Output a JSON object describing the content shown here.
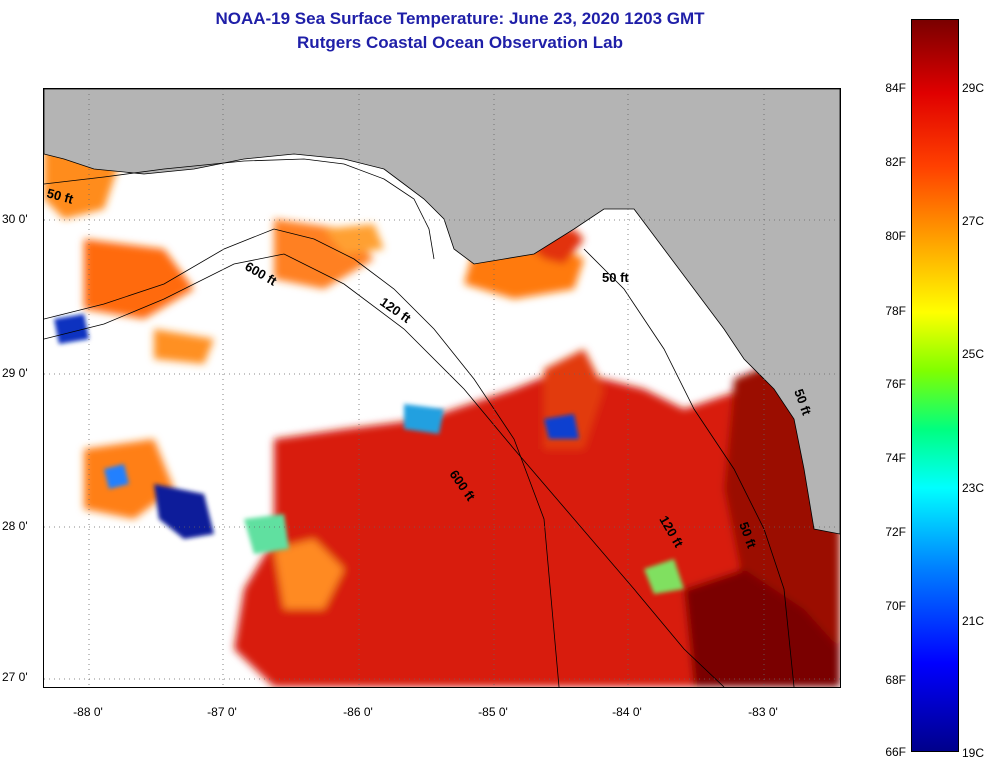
{
  "title": {
    "line1": "NOAA-19 Sea Surface Temperature:  June 23, 2020 1203 GMT",
    "line2": "Rutgers Coastal Ocean Observation Lab"
  },
  "map": {
    "lon_labels": [
      "-88 0'",
      "-87 0'",
      "-86 0'",
      "-85 0'",
      "-84 0'",
      "-83 0'"
    ],
    "lat_labels": [
      "30 0'",
      "29 0'",
      "28 0'",
      "27 0'"
    ],
    "contour_labels": [
      "50 ft",
      "600 ft",
      "120 ft",
      "50 ft",
      "600 ft",
      "120 ft",
      "50 ft",
      "50 ft"
    ],
    "colors": {
      "land": "#b4b4b4",
      "cloud": "#ffffff",
      "sst_warm": "#d81a0a",
      "sst_hot": "#8b0000",
      "sst_mid": "#ff7a10",
      "sst_cool": "#00008b"
    }
  },
  "colorbar": {
    "f_labels": [
      "84F",
      "82F",
      "80F",
      "78F",
      "76F",
      "74F",
      "72F",
      "70F",
      "68F",
      "66F"
    ],
    "c_labels": [
      "29C",
      "27C",
      "25C",
      "23C",
      "21C",
      "19C"
    ]
  }
}
